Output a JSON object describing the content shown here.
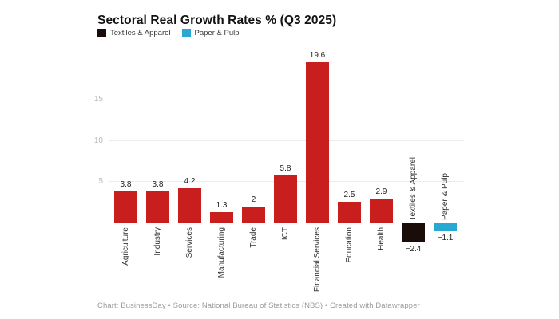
{
  "title": "Sectoral Real Growth Rates % (Q3 2025)",
  "legend": {
    "items": [
      {
        "label": "Textiles & Apparel",
        "color": "#1a0c08"
      },
      {
        "label": "Paper & Pulp",
        "color": "#29a8d2"
      }
    ]
  },
  "footer": {
    "text": "Chart: BusinessDay • Source: National Bureau of Statistics (NBS) • Created with Datawrapper"
  },
  "colors": {
    "bar_default": "#c81e1e",
    "axis_line": "#2b2b2b",
    "gridline": "#ececec",
    "tick_label": "#b8b8b8"
  },
  "chart_data": {
    "type": "bar",
    "title": "Sectoral Real Growth Rates % (Q3 2025)",
    "categories": [
      "Agriculture",
      "Industry",
      "Services",
      "Manufacturing",
      "Trade",
      "ICT",
      "Financial Services",
      "Education",
      "Health",
      "Textiles & Apparel",
      "Paper & Pulp"
    ],
    "values": [
      3.8,
      3.8,
      4.2,
      1.3,
      2,
      5.8,
      19.6,
      2.5,
      2.9,
      -2.4,
      -1.1
    ],
    "value_labels": [
      "3.8",
      "3.8",
      "4.2",
      "1.3",
      "2",
      "5.8",
      "19.6",
      "2.5",
      "2.9",
      "−2.4",
      "−1.1"
    ],
    "color_overrides": {
      "9": "#1a0c08",
      "10": "#29a8d2"
    },
    "yticks": [
      5,
      10,
      15
    ],
    "ylim": [
      -3.2,
      20.2
    ],
    "xlabel": "",
    "ylabel": "",
    "grid": true,
    "legend_position": "top-left"
  }
}
